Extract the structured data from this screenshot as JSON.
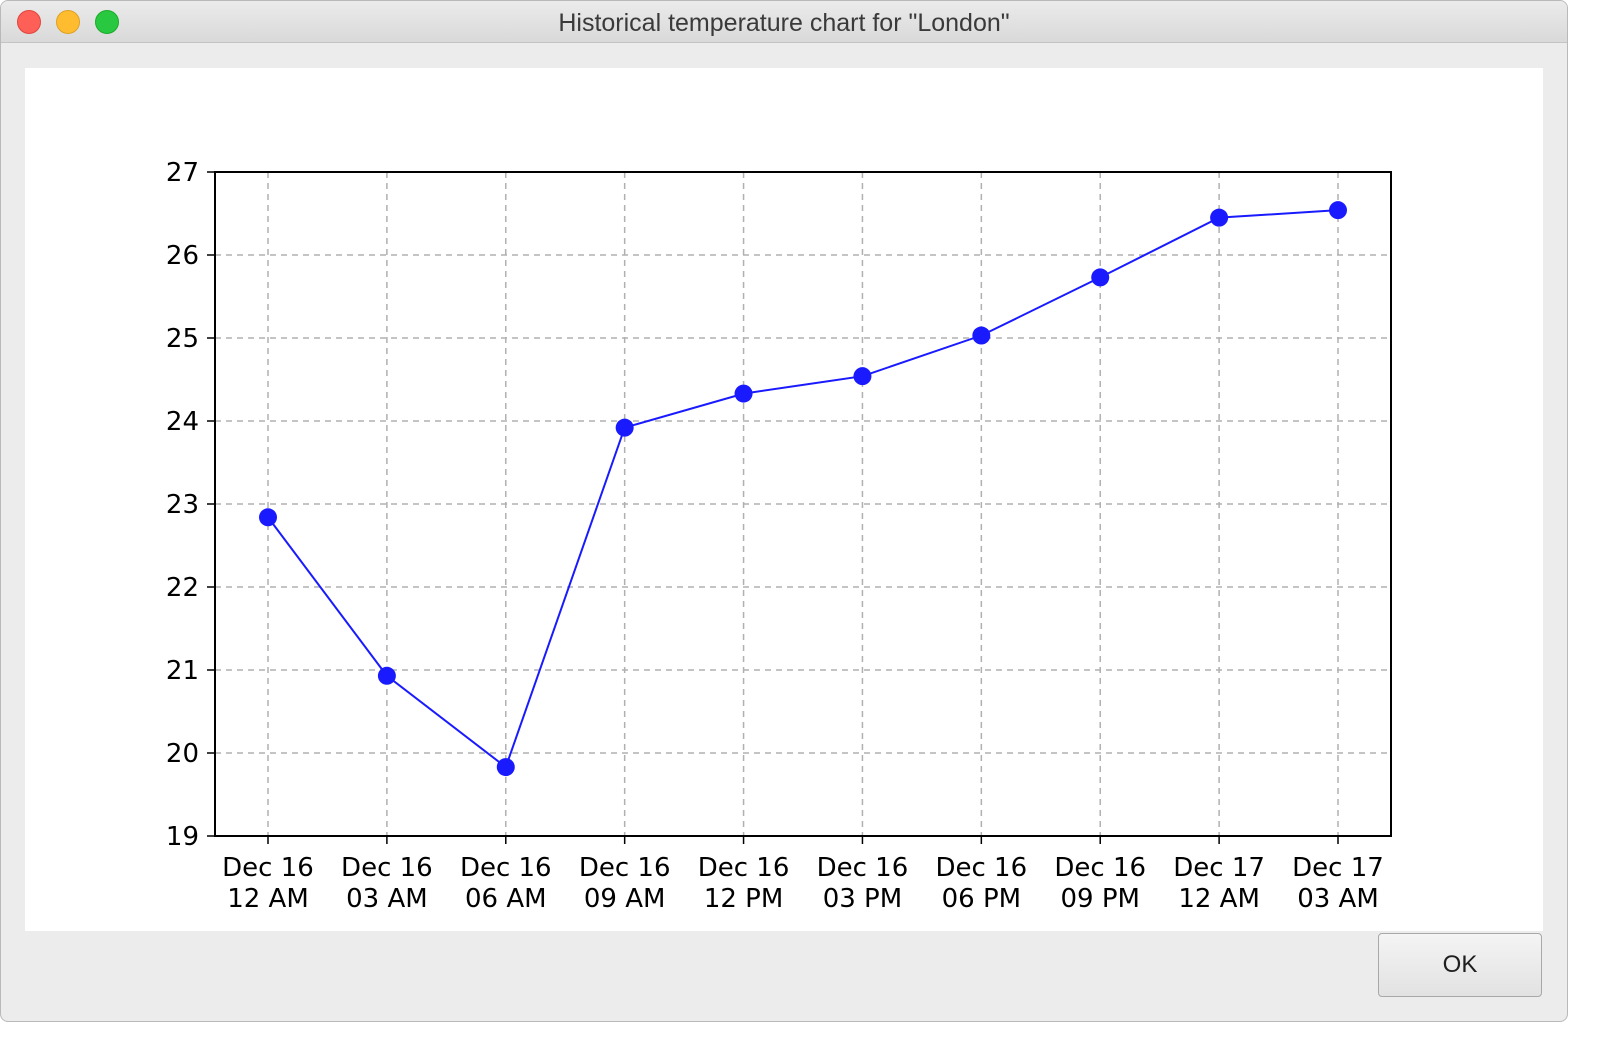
{
  "window": {
    "title": "Historical temperature chart for \"London\""
  },
  "dialog": {
    "ok_label": "OK"
  },
  "colors": {
    "series": "#1a1aff",
    "grid": "#b0b0b0",
    "axis": "#000000",
    "background": "#ffffff"
  },
  "chart_data": {
    "type": "line",
    "title": "",
    "xlabel": "",
    "ylabel": "",
    "categories": [
      [
        "Dec 16",
        "12 AM"
      ],
      [
        "Dec 16",
        "03 AM"
      ],
      [
        "Dec 16",
        "06 AM"
      ],
      [
        "Dec 16",
        "09 AM"
      ],
      [
        "Dec 16",
        "12 PM"
      ],
      [
        "Dec 16",
        "03 PM"
      ],
      [
        "Dec 16",
        "06 PM"
      ],
      [
        "Dec 16",
        "09 PM"
      ],
      [
        "Dec 17",
        "12 AM"
      ],
      [
        "Dec 17",
        "03 AM"
      ]
    ],
    "series": [
      {
        "values": [
          22.84,
          20.93,
          19.83,
          23.92,
          24.33,
          24.54,
          25.03,
          25.73,
          26.45,
          26.54
        ]
      }
    ],
    "ylim": [
      19,
      27
    ],
    "yticks": [
      19,
      20,
      21,
      22,
      23,
      24,
      25,
      26,
      27
    ],
    "grid": true,
    "grid_style": "dashed",
    "marker": "circle",
    "legend": "none"
  }
}
